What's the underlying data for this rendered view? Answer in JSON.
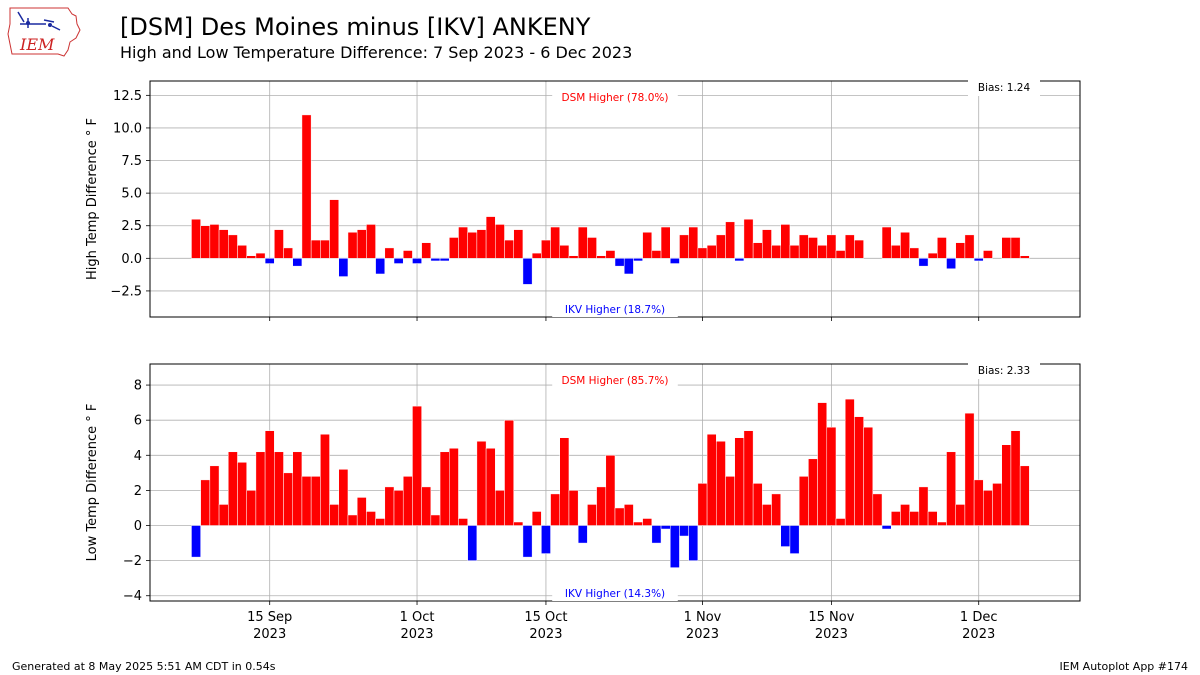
{
  "header": {
    "title": "[DSM] Des Moines minus [IKV] ANKENY",
    "subtitle": "High and Low Temperature Difference: 7 Sep 2023 - 6 Dec 2023",
    "logo_text": "IEM"
  },
  "footer": {
    "generated": "Generated at 8 May 2025 5:51 AM CDT in 0.54s",
    "app": "IEM Autoplot App #174"
  },
  "colors": {
    "positive": "#ff0000",
    "negative": "#0000ff",
    "grid": "#b0b0b0",
    "zero_line": "#a0a0a0"
  },
  "chart_data": [
    {
      "type": "bar",
      "panel": "high",
      "ylabel": "High Temp Difference $^\\circ$F",
      "ylabel_display": "High Temp Difference ° F",
      "ylim": [
        -4.5,
        13.6
      ],
      "yticks": [
        -2.5,
        0.0,
        2.5,
        5.0,
        7.5,
        10.0,
        12.5
      ],
      "ytick_labels": [
        "−2.5",
        "0.0",
        "2.5",
        "5.0",
        "7.5",
        "10.0",
        "12.5"
      ],
      "bias_label": "Bias: 1.24",
      "top_label": "DSM Higher (78.0%)",
      "bottom_label": "IKV Higher (18.7%)",
      "grid": true,
      "x_start": "2023-09-07",
      "values": [
        3.0,
        2.5,
        2.6,
        2.2,
        1.8,
        1.0,
        0.2,
        0.4,
        -0.4,
        2.2,
        0.8,
        -0.6,
        11.0,
        1.4,
        1.4,
        4.5,
        -1.4,
        2.0,
        2.2,
        2.6,
        -1.2,
        0.8,
        -0.4,
        0.6,
        -0.4,
        1.2,
        -0.2,
        -0.2,
        1.6,
        2.4,
        2.0,
        2.2,
        3.2,
        2.6,
        1.4,
        2.2,
        -2.0,
        0.4,
        1.4,
        2.4,
        1.0,
        0.2,
        2.4,
        1.6,
        0.2,
        0.6,
        -0.6,
        -1.2,
        -0.2,
        2.0,
        0.6,
        2.4,
        -0.4,
        1.8,
        2.4,
        0.8,
        1.0,
        1.8,
        2.8,
        -0.2,
        3.0,
        1.2,
        2.2,
        1.0,
        2.6,
        1.0,
        1.8,
        1.6,
        1.0,
        1.8,
        0.6,
        1.8,
        1.4,
        0.0,
        0.0,
        2.4,
        1.0,
        2.0,
        0.8,
        -0.6,
        0.4,
        1.6,
        -0.8,
        1.2,
        1.8,
        -0.2,
        0.6,
        0.0,
        1.6,
        1.6,
        0.2
      ]
    },
    {
      "type": "bar",
      "panel": "low",
      "ylabel": "Low Temp Difference $^\\circ$F",
      "ylabel_display": "Low Temp Difference ° F",
      "ylim": [
        -4.3,
        9.2
      ],
      "yticks": [
        -4,
        -2,
        0,
        2,
        4,
        6,
        8
      ],
      "ytick_labels": [
        "−4",
        "−2",
        "0",
        "2",
        "4",
        "6",
        "8"
      ],
      "bias_label": "Bias: 2.33",
      "top_label": "DSM Higher (85.7%)",
      "bottom_label": "IKV Higher (14.3%)",
      "grid": true,
      "x_start": "2023-09-07",
      "values": [
        -1.8,
        2.6,
        3.4,
        1.2,
        4.2,
        3.6,
        2.0,
        4.2,
        5.4,
        4.2,
        3.0,
        4.2,
        2.8,
        2.8,
        5.2,
        1.2,
        3.2,
        0.6,
        1.6,
        0.8,
        0.4,
        2.2,
        2.0,
        2.8,
        6.8,
        2.2,
        0.6,
        4.2,
        4.4,
        0.4,
        -2.0,
        4.8,
        4.4,
        2.0,
        6.0,
        0.2,
        -1.8,
        0.8,
        -1.6,
        1.8,
        5.0,
        2.0,
        -1.0,
        1.2,
        2.2,
        4.0,
        1.0,
        1.2,
        0.2,
        0.4,
        -1.0,
        -0.2,
        -2.4,
        -0.6,
        -2.0,
        2.4,
        5.2,
        4.8,
        2.8,
        5.0,
        5.4,
        2.4,
        1.2,
        1.8,
        -1.2,
        -1.6,
        2.8,
        3.8,
        7.0,
        5.6,
        0.4,
        7.2,
        6.2,
        5.6,
        1.8,
        -0.2,
        0.8,
        1.2,
        0.8,
        2.2,
        0.8,
        0.2,
        4.2,
        1.2,
        6.4,
        2.6,
        2.0,
        2.4,
        4.6,
        5.4,
        3.4
      ]
    }
  ],
  "x_axis": {
    "ticks": [
      {
        "date": "2023-09-15",
        "label1": "15 Sep",
        "label2": "2023"
      },
      {
        "date": "2023-10-01",
        "label1": "1 Oct",
        "label2": "2023"
      },
      {
        "date": "2023-10-15",
        "label1": "15 Oct",
        "label2": "2023"
      },
      {
        "date": "2023-11-01",
        "label1": "1 Nov",
        "label2": "2023"
      },
      {
        "date": "2023-11-15",
        "label1": "15 Nov",
        "label2": "2023"
      },
      {
        "date": "2023-12-01",
        "label1": "1 Dec",
        "label2": "2023"
      }
    ],
    "xlim": [
      "2023-09-02",
      "2023-12-12"
    ]
  }
}
